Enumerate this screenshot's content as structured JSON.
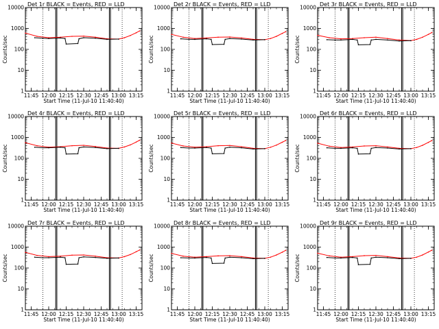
{
  "chart_data": [
    {
      "type": "line",
      "title": "Det 1r BLACK = Events, RED = LLD",
      "xlabel": "Start Time (11-Jul-10 11:40:40)",
      "ylabel": "Counts/sec",
      "yscale": "log",
      "ylim": [
        1,
        10000
      ],
      "xlim": [
        "11:40",
        "13:20"
      ],
      "xticks": [
        "11:45",
        "12:00",
        "12:15",
        "12:30",
        "12:45",
        "13:00",
        "13:15"
      ],
      "yticks": [
        "1",
        "10",
        "100",
        "1000",
        "10000"
      ],
      "grid": false,
      "series": [
        {
          "color": "#ff0000",
          "x": [
            "11:40",
            "11:50",
            "12:00",
            "12:10",
            "12:20",
            "12:30",
            "12:40",
            "12:50",
            "13:00",
            "13:05",
            "13:10",
            "13:15",
            "13:18"
          ],
          "y": [
            600,
            420,
            360,
            380,
            420,
            430,
            380,
            320,
            310,
            360,
            460,
            620,
            760
          ]
        },
        {
          "color": "#000000",
          "x": [
            "11:48",
            "11:55",
            "12:00",
            "12:10",
            "12:14",
            "12:15",
            "12:25",
            "12:26",
            "12:30",
            "12:40",
            "12:50",
            "13:00"
          ],
          "y": [
            360,
            340,
            330,
            350,
            330,
            180,
            190,
            320,
            360,
            340,
            300,
            310
          ]
        }
      ]
    },
    {
      "type": "line",
      "title": "Det 2r BLACK = Events, RED = LLD",
      "xlabel": "Start Time (11-Jul-10 11:40:40)",
      "ylabel": "Counts/sec",
      "yscale": "log",
      "ylim": [
        1,
        10000
      ],
      "xlim": [
        "11:40",
        "13:20"
      ],
      "xticks": [
        "11:45",
        "12:00",
        "12:15",
        "12:30",
        "12:45",
        "13:00",
        "13:15"
      ],
      "yticks": [
        "1",
        "10",
        "100",
        "1000",
        "10000"
      ],
      "grid": false,
      "series": [
        {
          "color": "#ff0000",
          "x": [
            "11:40",
            "11:50",
            "12:00",
            "12:10",
            "12:20",
            "12:30",
            "12:40",
            "12:50",
            "13:00",
            "13:05",
            "13:10",
            "13:15",
            "13:18"
          ],
          "y": [
            520,
            380,
            330,
            350,
            380,
            390,
            350,
            300,
            290,
            330,
            420,
            580,
            700
          ]
        },
        {
          "color": "#000000",
          "x": [
            "11:48",
            "11:55",
            "12:00",
            "12:10",
            "12:14",
            "12:15",
            "12:25",
            "12:26",
            "12:30",
            "12:40",
            "12:50",
            "13:00"
          ],
          "y": [
            320,
            300,
            300,
            320,
            300,
            170,
            175,
            300,
            330,
            310,
            280,
            290
          ]
        }
      ]
    },
    {
      "type": "line",
      "title": "Det 3r BLACK = Events, RED = LLD",
      "xlabel": "Start Time (11-Jul-10 11:40:40)",
      "ylabel": "Counts/sec",
      "yscale": "log",
      "ylim": [
        1,
        10000
      ],
      "xlim": [
        "11:40",
        "13:20"
      ],
      "xticks": [
        "11:45",
        "12:00",
        "12:15",
        "12:30",
        "12:45",
        "13:00",
        "13:15"
      ],
      "yticks": [
        "1",
        "10",
        "100",
        "1000",
        "10000"
      ],
      "grid": false,
      "series": [
        {
          "color": "#ff0000",
          "x": [
            "11:40",
            "11:50",
            "12:00",
            "12:10",
            "12:20",
            "12:30",
            "12:40",
            "12:50",
            "13:00",
            "13:05",
            "13:10",
            "13:15",
            "13:18"
          ],
          "y": [
            470,
            360,
            320,
            330,
            360,
            380,
            330,
            280,
            260,
            300,
            380,
            520,
            640
          ]
        },
        {
          "color": "#000000",
          "x": [
            "11:48",
            "11:55",
            "12:00",
            "12:10",
            "12:14",
            "12:15",
            "12:25",
            "12:26",
            "12:30",
            "12:40",
            "12:50",
            "13:00"
          ],
          "y": [
            290,
            280,
            280,
            300,
            280,
            165,
            170,
            280,
            300,
            280,
            250,
            260
          ]
        }
      ]
    },
    {
      "type": "line",
      "title": "Det 4r BLACK = Events, RED = LLD",
      "xlabel": "Start Time (11-Jul-10 11:40:40)",
      "ylabel": "Counts/sec",
      "yscale": "log",
      "ylim": [
        1,
        10000
      ],
      "xlim": [
        "11:40",
        "13:20"
      ],
      "xticks": [
        "11:45",
        "12:00",
        "12:15",
        "12:30",
        "12:45",
        "13:00",
        "13:15"
      ],
      "yticks": [
        "1",
        "10",
        "100",
        "1000",
        "10000"
      ],
      "grid": false,
      "series": [
        {
          "color": "#ff0000",
          "x": [
            "11:40",
            "11:50",
            "12:00",
            "12:10",
            "12:20",
            "12:30",
            "12:40",
            "12:50",
            "13:00",
            "13:05",
            "13:10",
            "13:15",
            "13:18"
          ],
          "y": [
            560,
            400,
            340,
            360,
            400,
            420,
            370,
            310,
            300,
            350,
            440,
            600,
            740
          ]
        },
        {
          "color": "#000000",
          "x": [
            "11:48",
            "11:55",
            "12:00",
            "12:10",
            "12:14",
            "12:15",
            "12:25",
            "12:26",
            "12:30",
            "12:40",
            "12:50",
            "13:00"
          ],
          "y": [
            340,
            320,
            320,
            340,
            320,
            160,
            165,
            320,
            350,
            330,
            290,
            300
          ]
        }
      ]
    },
    {
      "type": "line",
      "title": "Det 5r BLACK = Events, RED = LLD",
      "xlabel": "Start Time (11-Jul-10 11:40:40)",
      "ylabel": "Counts/sec",
      "yscale": "log",
      "ylim": [
        1,
        10000
      ],
      "xlim": [
        "11:40",
        "13:20"
      ],
      "xticks": [
        "11:45",
        "12:00",
        "12:15",
        "12:30",
        "12:45",
        "13:00",
        "13:15"
      ],
      "yticks": [
        "1",
        "10",
        "100",
        "1000",
        "10000"
      ],
      "grid": false,
      "series": [
        {
          "color": "#ff0000",
          "x": [
            "11:40",
            "11:50",
            "12:00",
            "12:10",
            "12:20",
            "12:30",
            "12:40",
            "12:50",
            "13:00",
            "13:05",
            "13:10",
            "13:15",
            "13:18"
          ],
          "y": [
            540,
            390,
            340,
            360,
            400,
            410,
            360,
            300,
            290,
            340,
            430,
            590,
            720
          ]
        },
        {
          "color": "#000000",
          "x": [
            "11:48",
            "11:55",
            "12:00",
            "12:10",
            "12:14",
            "12:15",
            "12:25",
            "12:26",
            "12:30",
            "12:40",
            "12:50",
            "13:00"
          ],
          "y": [
            330,
            310,
            310,
            330,
            310,
            165,
            170,
            310,
            340,
            320,
            280,
            290
          ]
        }
      ]
    },
    {
      "type": "line",
      "title": "Det 6r BLACK = Events, RED = LLD",
      "xlabel": "Start Time (11-Jul-10 11:40:40)",
      "ylabel": "Counts/sec",
      "yscale": "log",
      "ylim": [
        1,
        10000
      ],
      "xlim": [
        "11:40",
        "13:20"
      ],
      "xticks": [
        "11:45",
        "12:00",
        "12:15",
        "12:30",
        "12:45",
        "13:00",
        "13:15"
      ],
      "yticks": [
        "1",
        "10",
        "100",
        "1000",
        "10000"
      ],
      "grid": false,
      "series": [
        {
          "color": "#ff0000",
          "x": [
            "11:40",
            "11:50",
            "12:00",
            "12:10",
            "12:20",
            "12:30",
            "12:40",
            "12:50",
            "13:00",
            "13:05",
            "13:10",
            "13:15",
            "13:18"
          ],
          "y": [
            530,
            380,
            330,
            350,
            390,
            400,
            350,
            300,
            290,
            330,
            420,
            580,
            710
          ]
        },
        {
          "color": "#000000",
          "x": [
            "11:48",
            "11:55",
            "12:00",
            "12:10",
            "12:14",
            "12:15",
            "12:25",
            "12:26",
            "12:30",
            "12:40",
            "12:50",
            "13:00"
          ],
          "y": [
            320,
            300,
            300,
            320,
            300,
            160,
            165,
            300,
            330,
            310,
            280,
            290
          ]
        }
      ]
    },
    {
      "type": "line",
      "title": "Det 7r BLACK = Events, RED = LLD",
      "xlabel": "Start Time (11-Jul-10 11:40:40)",
      "ylabel": "Counts/sec",
      "yscale": "log",
      "ylim": [
        1,
        10000
      ],
      "xlim": [
        "11:40",
        "13:20"
      ],
      "xticks": [
        "11:45",
        "12:00",
        "12:15",
        "12:30",
        "12:45",
        "13:00",
        "13:15"
      ],
      "yticks": [
        "1",
        "10",
        "100",
        "1000",
        "10000"
      ],
      "grid": false,
      "series": [
        {
          "color": "#ff0000",
          "x": [
            "11:40",
            "11:50",
            "12:00",
            "12:10",
            "12:20",
            "12:30",
            "12:40",
            "12:50",
            "13:00",
            "13:05",
            "13:10",
            "13:15",
            "13:18"
          ],
          "y": [
            560,
            400,
            350,
            370,
            410,
            420,
            370,
            310,
            300,
            350,
            440,
            600,
            730
          ]
        },
        {
          "color": "#000000",
          "x": [
            "11:48",
            "11:55",
            "12:00",
            "12:10",
            "12:14",
            "12:15",
            "12:25",
            "12:26",
            "12:30",
            "12:40",
            "12:50",
            "13:00"
          ],
          "y": [
            330,
            310,
            310,
            330,
            310,
            150,
            155,
            310,
            340,
            320,
            290,
            300
          ]
        }
      ]
    },
    {
      "type": "line",
      "title": "Det 8r BLACK = Events, RED = LLD",
      "xlabel": "Start Time (11-Jul-10 11:40:40)",
      "ylabel": "Counts/sec",
      "yscale": "log",
      "ylim": [
        1,
        10000
      ],
      "xlim": [
        "11:40",
        "13:20"
      ],
      "xticks": [
        "11:45",
        "12:00",
        "12:15",
        "12:30",
        "12:45",
        "13:00",
        "13:15"
      ],
      "yticks": [
        "1",
        "10",
        "100",
        "1000",
        "10000"
      ],
      "grid": false,
      "series": [
        {
          "color": "#ff0000",
          "x": [
            "11:40",
            "11:50",
            "12:00",
            "12:10",
            "12:20",
            "12:30",
            "12:40",
            "12:50",
            "13:00",
            "13:05",
            "13:10",
            "13:15",
            "13:18"
          ],
          "y": [
            500,
            370,
            330,
            350,
            380,
            390,
            350,
            300,
            290,
            330,
            420,
            570,
            700
          ]
        },
        {
          "color": "#000000",
          "x": [
            "11:48",
            "11:55",
            "12:00",
            "12:10",
            "12:14",
            "12:15",
            "12:25",
            "12:26",
            "12:30",
            "12:40",
            "12:50",
            "13:00"
          ],
          "y": [
            310,
            300,
            300,
            320,
            300,
            165,
            170,
            300,
            330,
            310,
            280,
            290
          ]
        }
      ]
    },
    {
      "type": "line",
      "title": "Det 9r BLACK = Events, RED = LLD",
      "xlabel": "Start Time (11-Jul-10 11:40:40)",
      "ylabel": "Counts/sec",
      "yscale": "log",
      "ylim": [
        1,
        10000
      ],
      "xlim": [
        "11:40",
        "13:20"
      ],
      "xticks": [
        "11:45",
        "12:00",
        "12:15",
        "12:30",
        "12:45",
        "13:00",
        "13:15"
      ],
      "yticks": [
        "1",
        "10",
        "100",
        "1000",
        "10000"
      ],
      "grid": false,
      "series": [
        {
          "color": "#ff0000",
          "x": [
            "11:40",
            "11:50",
            "12:00",
            "12:10",
            "12:20",
            "12:30",
            "12:40",
            "12:50",
            "13:00",
            "13:05",
            "13:10",
            "13:15",
            "13:18"
          ],
          "y": [
            510,
            380,
            330,
            350,
            390,
            400,
            350,
            300,
            290,
            330,
            420,
            580,
            710
          ]
        },
        {
          "color": "#000000",
          "x": [
            "11:48",
            "11:55",
            "12:00",
            "12:10",
            "12:14",
            "12:15",
            "12:25",
            "12:26",
            "12:30",
            "12:40",
            "12:50",
            "13:00"
          ],
          "y": [
            320,
            300,
            300,
            320,
            300,
            145,
            150,
            300,
            330,
            310,
            280,
            290
          ]
        }
      ]
    }
  ]
}
